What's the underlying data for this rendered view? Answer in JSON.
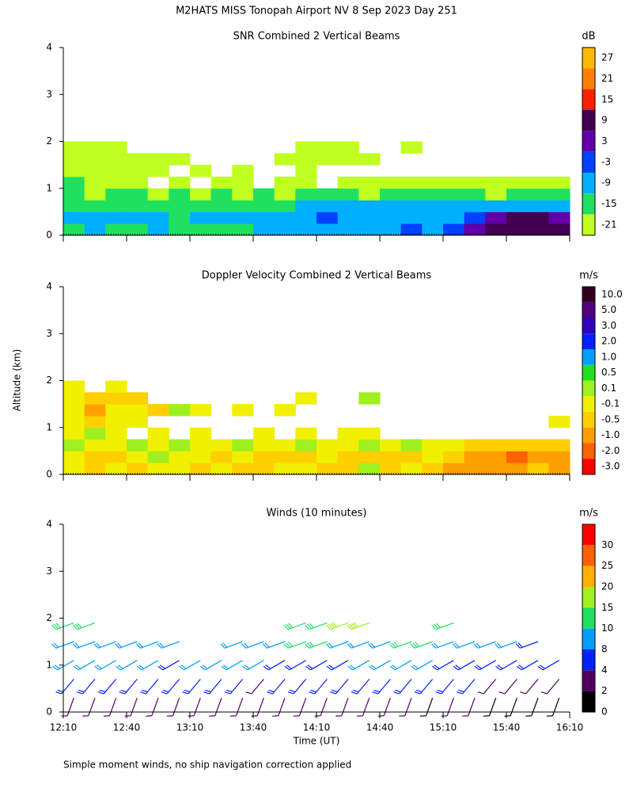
{
  "title": "M2HATS MISS Tonopah Airport NV   8 Sep 2023 Day 251",
  "y_label": "Altitude (km)",
  "x_label": "Time (UT)",
  "footnote": "Simple moment winds, no ship navigation correction applied",
  "xticks": [
    "12:10",
    "12:40",
    "13:10",
    "13:40",
    "14:10",
    "14:40",
    "15:10",
    "15:40",
    "16:10"
  ],
  "chart_data": [
    {
      "type": "heatmap",
      "title": "SNR Combined 2 Vertical Beams",
      "unit": "dB",
      "ylim": [
        0,
        4
      ],
      "yticks": [
        0,
        1,
        2,
        3,
        4
      ],
      "heights": [
        0.125,
        0.375,
        0.625,
        0.875,
        1.125,
        1.375,
        1.625,
        1.875
      ],
      "colorbar": {
        "ticks": [
          27,
          21,
          15,
          9,
          3,
          -3,
          -9,
          -15,
          -21
        ],
        "colors": [
          "#ffb800",
          "#ff8000",
          "#ff2000",
          "#400050",
          "#6000a8",
          "#0040ff",
          "#00b0ff",
          "#20e060",
          "#c0ff20"
        ]
      },
      "values": [
        [
          -15,
          -9,
          -15,
          -15,
          -9,
          -15,
          -15,
          -15,
          -15,
          -9,
          -9,
          -9,
          -9,
          -9,
          -9,
          -9,
          -3,
          -9,
          -3,
          3,
          9,
          9,
          9,
          9
        ],
        [
          -9,
          -9,
          -9,
          -9,
          -9,
          -15,
          -9,
          -9,
          -9,
          -9,
          -9,
          -9,
          -3,
          -9,
          -9,
          -9,
          -9,
          -9,
          -9,
          -3,
          3,
          9,
          9,
          3
        ],
        [
          -15,
          -15,
          -15,
          -15,
          -15,
          -15,
          -15,
          -15,
          -15,
          -15,
          -15,
          -9,
          -9,
          -9,
          -9,
          -9,
          -9,
          -9,
          -9,
          -9,
          -9,
          -9,
          -9,
          -9
        ],
        [
          -15,
          -21,
          -15,
          -15,
          -21,
          -15,
          -21,
          -15,
          -21,
          -15,
          -21,
          -15,
          -15,
          -15,
          -21,
          -15,
          -15,
          -15,
          -15,
          -15,
          -21,
          -15,
          -15,
          -15
        ],
        [
          -15,
          -21,
          -21,
          -21,
          null,
          -21,
          null,
          -21,
          -21,
          null,
          -21,
          -21,
          null,
          -21,
          -21,
          -21,
          -21,
          -21,
          -21,
          -21,
          -21,
          -21,
          -21,
          -21
        ],
        [
          -21,
          -21,
          -21,
          -21,
          -21,
          null,
          -21,
          null,
          -21,
          null,
          null,
          -21,
          null,
          null,
          null,
          null,
          null,
          null,
          null,
          null,
          null,
          null,
          null,
          null
        ],
        [
          -21,
          -21,
          -21,
          -21,
          -21,
          -21,
          null,
          null,
          null,
          null,
          -21,
          -21,
          -21,
          -21,
          -21,
          null,
          null,
          null,
          null,
          null,
          null,
          null,
          null,
          null
        ],
        [
          -21,
          -21,
          -21,
          null,
          null,
          null,
          null,
          null,
          null,
          null,
          null,
          -21,
          -21,
          -21,
          null,
          null,
          -21,
          null,
          null,
          null,
          null,
          null,
          null,
          null
        ]
      ]
    },
    {
      "type": "heatmap",
      "title": "Doppler Velocity Combined 2 Vertical Beams",
      "unit": "m/s",
      "ylim": [
        0,
        4
      ],
      "yticks": [
        0,
        1,
        2,
        3,
        4
      ],
      "heights": [
        0.125,
        0.375,
        0.625,
        0.875,
        1.125,
        1.375,
        1.625,
        1.875
      ],
      "colorbar": {
        "ticks": [
          {
            "value": 10,
            "label": "10.0"
          },
          {
            "value": 5,
            "label": "5.0"
          },
          {
            "value": 3,
            "label": "3.0"
          },
          {
            "value": 2,
            "label": "2.0"
          },
          {
            "value": 1,
            "label": "1.0"
          },
          0.5,
          0.1,
          -0.1,
          -0.5,
          {
            "value": -1,
            "label": "-1.0"
          },
          {
            "value": -2,
            "label": "-2.0"
          },
          {
            "value": -3,
            "label": "-3.0"
          }
        ],
        "colors": [
          "#300020",
          "#500080",
          "#3000c0",
          "#0020ff",
          "#00a0ff",
          "#20e020",
          "#a0f020",
          "#f0f000",
          "#ffd000",
          "#ffa000",
          "#ff6000",
          "#ff0000"
        ]
      },
      "values": [
        [
          -0.1,
          -0.5,
          -0.1,
          -0.5,
          -0.1,
          -0.1,
          -0.5,
          -0.1,
          -0.5,
          -0.5,
          -0.1,
          -0.1,
          -0.5,
          -0.5,
          0.1,
          -0.5,
          -0.1,
          -0.5,
          -1,
          -1,
          -1,
          -1,
          -0.5,
          -1
        ],
        [
          -0.1,
          -0.5,
          -0.5,
          -0.1,
          0.1,
          -0.1,
          -0.1,
          -0.5,
          -0.1,
          -0.5,
          -0.5,
          -0.5,
          -0.1,
          -0.5,
          -0.5,
          -0.5,
          -0.5,
          -0.1,
          -0.5,
          -1,
          -1,
          -2,
          -1,
          -1
        ],
        [
          0.1,
          -0.1,
          -0.1,
          0.1,
          -0.1,
          0.1,
          -0.1,
          -0.1,
          0.1,
          -0.1,
          -0.1,
          0.1,
          -0.1,
          -0.1,
          0.1,
          -0.1,
          0.1,
          -0.1,
          -0.1,
          -0.5,
          -0.5,
          -0.5,
          -0.5,
          -0.5
        ],
        [
          -0.1,
          0.1,
          -0.1,
          null,
          -0.1,
          null,
          -0.1,
          null,
          null,
          -0.1,
          null,
          -0.1,
          null,
          -0.1,
          -0.1,
          null,
          null,
          null,
          null,
          null,
          null,
          null,
          null,
          null
        ],
        [
          -0.1,
          -0.5,
          -0.1,
          -0.1,
          null,
          null,
          null,
          null,
          null,
          null,
          null,
          null,
          null,
          null,
          null,
          null,
          null,
          null,
          null,
          null,
          null,
          null,
          null,
          -0.1
        ],
        [
          -0.1,
          -1,
          -0.1,
          -0.1,
          -0.5,
          0.1,
          -0.1,
          null,
          -0.1,
          null,
          -0.1,
          null,
          null,
          null,
          null,
          null,
          null,
          null,
          null,
          null,
          null,
          null,
          null,
          null
        ],
        [
          -0.1,
          -0.5,
          -0.5,
          -0.5,
          null,
          null,
          null,
          null,
          null,
          null,
          null,
          -0.1,
          null,
          null,
          0.1,
          null,
          null,
          null,
          null,
          null,
          null,
          null,
          null,
          null
        ],
        [
          -0.1,
          null,
          -0.1,
          null,
          null,
          null,
          null,
          null,
          null,
          null,
          null,
          null,
          null,
          null,
          null,
          null,
          null,
          null,
          null,
          null,
          null,
          null,
          null,
          null
        ]
      ]
    },
    {
      "type": "barbs",
      "title": "Winds (10 minutes)",
      "unit": "m/s",
      "ylim": [
        0,
        4
      ],
      "yticks": [
        0,
        1,
        2,
        3,
        4
      ],
      "heights": [
        0.3,
        0.7,
        1.1,
        1.5,
        1.9
      ],
      "directions": [
        200,
        220,
        240,
        250,
        250
      ],
      "colorbar": {
        "ticks": [
          30,
          25,
          20,
          15,
          10,
          8,
          4,
          2,
          0
        ],
        "colors": [
          "#ff0000",
          "#ff6000",
          "#ffb000",
          "#a0f020",
          "#20e060",
          "#00a0ff",
          "#0020ff",
          "#500060",
          "#000000"
        ]
      },
      "values": [
        [
          3,
          3,
          3,
          3,
          3,
          3,
          3,
          3,
          3,
          3,
          3,
          3,
          3,
          3,
          3,
          3,
          3,
          1,
          3,
          3,
          1,
          1,
          1,
          1
        ],
        [
          6,
          6,
          6,
          6,
          6,
          6,
          6,
          6,
          6,
          3,
          6,
          6,
          6,
          6,
          6,
          6,
          6,
          6,
          6,
          6,
          3,
          3,
          3,
          3
        ],
        [
          9,
          9,
          9,
          9,
          9,
          6,
          9,
          9,
          9,
          9,
          6,
          6,
          6,
          6,
          9,
          9,
          9,
          9,
          6,
          6,
          6,
          6,
          6,
          6
        ],
        [
          9,
          9,
          9,
          9,
          9,
          9,
          null,
          null,
          9,
          9,
          9,
          12,
          12,
          9,
          9,
          9,
          12,
          12,
          9,
          9,
          9,
          9,
          6,
          null
        ],
        [
          12,
          12,
          null,
          null,
          null,
          null,
          null,
          null,
          null,
          null,
          null,
          12,
          12,
          17,
          17,
          null,
          null,
          null,
          12,
          null,
          null,
          null,
          null,
          null
        ]
      ]
    }
  ]
}
